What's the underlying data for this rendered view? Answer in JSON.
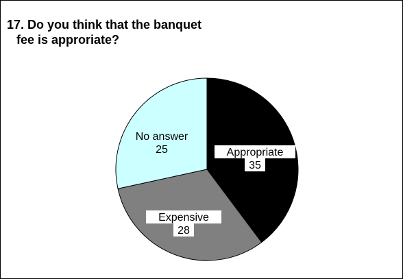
{
  "chart_data": {
    "type": "pie",
    "title": [
      "17. Do you think that the banquet",
      "fee is approriate?"
    ],
    "slices": [
      {
        "label": "Appropriate",
        "value": 35,
        "color": "#000000"
      },
      {
        "label": "Expensive",
        "value": 28,
        "color": "#808080"
      },
      {
        "label": "No answer",
        "value": 25,
        "color": "#ccffff"
      }
    ],
    "start_angle_deg": 0,
    "direction": "clockwise",
    "legend": "none"
  }
}
